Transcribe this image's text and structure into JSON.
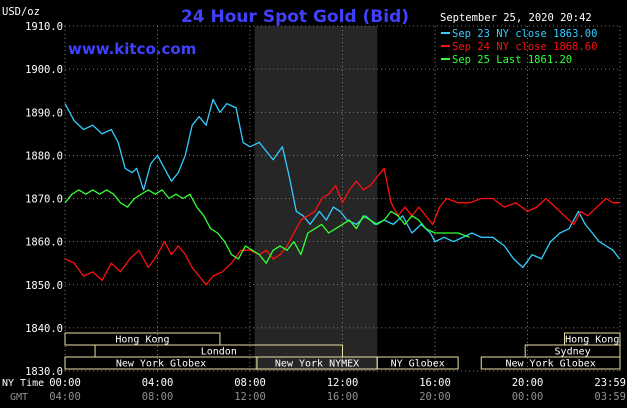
{
  "header": {
    "title": "24 Hour Spot Gold (Bid)",
    "website": "www.kitco.com",
    "y_unit": "USD/oz",
    "timestamp": "September 25, 2020 20:42"
  },
  "colors": {
    "background": "#000000",
    "title": "#4040ff",
    "website": "#4040ff",
    "grid": "#9a9a9a",
    "axis_text": "#ffffff",
    "night_shade": "#262626",
    "session_bar": "#e8e0a0",
    "gmt_text": "#909090"
  },
  "chart_data": {
    "type": "line",
    "title": "24 Hour Spot Gold (Bid)",
    "ylabel": "USD/oz",
    "ylim": [
      1830,
      1910
    ],
    "yticks": [
      "1830.0",
      "1840.0",
      "1850.0",
      "1860.0",
      "1870.0",
      "1880.0",
      "1890.0",
      "1900.0",
      "1910.0"
    ],
    "x_labels_ny": [
      "00:00",
      "04:00",
      "08:00",
      "12:00",
      "16:00",
      "20:00",
      "23:59"
    ],
    "x_labels_gmt": [
      "04:00",
      "08:00",
      "12:00",
      "16:00",
      "20:00",
      "00:00",
      "03:59"
    ],
    "x_row_label_ny": "NY Time",
    "x_row_label_gmt": "GMT",
    "shaded_hours": [
      8.2,
      13.5
    ],
    "grid": true,
    "legend_position": "top-right",
    "series": [
      {
        "name": "Sep 23 NY close 1863.00",
        "color": "#33ccff",
        "points": [
          [
            0,
            1892
          ],
          [
            0.4,
            1888
          ],
          [
            0.8,
            1886
          ],
          [
            1.2,
            1887
          ],
          [
            1.6,
            1885
          ],
          [
            2.0,
            1886
          ],
          [
            2.3,
            1883
          ],
          [
            2.6,
            1877
          ],
          [
            2.9,
            1876
          ],
          [
            3.1,
            1877
          ],
          [
            3.4,
            1872
          ],
          [
            3.7,
            1878
          ],
          [
            4.0,
            1880
          ],
          [
            4.3,
            1877
          ],
          [
            4.6,
            1874
          ],
          [
            4.9,
            1876
          ],
          [
            5.2,
            1880
          ],
          [
            5.5,
            1887
          ],
          [
            5.8,
            1889
          ],
          [
            6.1,
            1887
          ],
          [
            6.4,
            1893
          ],
          [
            6.7,
            1890
          ],
          [
            7.0,
            1892
          ],
          [
            7.4,
            1891
          ],
          [
            7.7,
            1883
          ],
          [
            8.0,
            1882
          ],
          [
            8.4,
            1883
          ],
          [
            8.7,
            1881
          ],
          [
            9.0,
            1879
          ],
          [
            9.4,
            1882
          ],
          [
            9.7,
            1875
          ],
          [
            10.0,
            1867
          ],
          [
            10.3,
            1866
          ],
          [
            10.6,
            1864
          ],
          [
            11.0,
            1867
          ],
          [
            11.3,
            1865
          ],
          [
            11.6,
            1868
          ],
          [
            11.9,
            1867
          ],
          [
            12.2,
            1865
          ],
          [
            12.6,
            1864
          ],
          [
            13.0,
            1866
          ],
          [
            13.4,
            1864
          ],
          [
            13.8,
            1865
          ],
          [
            14.2,
            1864
          ],
          [
            14.6,
            1866
          ],
          [
            15.0,
            1862
          ],
          [
            15.4,
            1864
          ],
          [
            15.8,
            1862
          ],
          [
            16.0,
            1860
          ],
          [
            16.4,
            1861
          ],
          [
            16.8,
            1860
          ],
          [
            17.2,
            1861
          ],
          [
            17.6,
            1862
          ],
          [
            18.0,
            1861
          ],
          [
            18.5,
            1861
          ],
          [
            19.0,
            1859
          ],
          [
            19.4,
            1856
          ],
          [
            19.8,
            1854
          ],
          [
            20.2,
            1857
          ],
          [
            20.6,
            1856
          ],
          [
            21.0,
            1860
          ],
          [
            21.4,
            1862
          ],
          [
            21.8,
            1863
          ],
          [
            22.2,
            1867
          ],
          [
            22.5,
            1864
          ],
          [
            22.8,
            1862
          ],
          [
            23.1,
            1860
          ],
          [
            23.4,
            1859
          ],
          [
            23.7,
            1858
          ],
          [
            23.98,
            1856
          ]
        ]
      },
      {
        "name": "Sep 24 NY close 1868.60",
        "color": "#ff1010",
        "points": [
          [
            0,
            1856
          ],
          [
            0.4,
            1855
          ],
          [
            0.8,
            1852
          ],
          [
            1.2,
            1853
          ],
          [
            1.6,
            1851
          ],
          [
            2.0,
            1855
          ],
          [
            2.4,
            1853
          ],
          [
            2.8,
            1856
          ],
          [
            3.2,
            1858
          ],
          [
            3.6,
            1854
          ],
          [
            4.0,
            1857
          ],
          [
            4.3,
            1860
          ],
          [
            4.6,
            1857
          ],
          [
            4.9,
            1859
          ],
          [
            5.2,
            1857
          ],
          [
            5.5,
            1854
          ],
          [
            5.8,
            1852
          ],
          [
            6.1,
            1850
          ],
          [
            6.4,
            1852
          ],
          [
            6.8,
            1853
          ],
          [
            7.2,
            1855
          ],
          [
            7.6,
            1858
          ],
          [
            8.0,
            1858
          ],
          [
            8.4,
            1857
          ],
          [
            8.7,
            1858
          ],
          [
            9.0,
            1856
          ],
          [
            9.3,
            1857
          ],
          [
            9.6,
            1859
          ],
          [
            9.9,
            1862
          ],
          [
            10.2,
            1865
          ],
          [
            10.5,
            1866
          ],
          [
            10.8,
            1867
          ],
          [
            11.1,
            1870
          ],
          [
            11.4,
            1871
          ],
          [
            11.7,
            1873
          ],
          [
            12.0,
            1869
          ],
          [
            12.3,
            1872
          ],
          [
            12.6,
            1874
          ],
          [
            12.9,
            1872
          ],
          [
            13.2,
            1873
          ],
          [
            13.5,
            1875
          ],
          [
            13.8,
            1877
          ],
          [
            14.1,
            1869
          ],
          [
            14.4,
            1866
          ],
          [
            14.7,
            1868
          ],
          [
            15.0,
            1866
          ],
          [
            15.3,
            1868
          ],
          [
            15.6,
            1866
          ],
          [
            15.9,
            1864
          ],
          [
            16.2,
            1868
          ],
          [
            16.5,
            1870
          ],
          [
            17.0,
            1869
          ],
          [
            17.5,
            1869
          ],
          [
            18.0,
            1870
          ],
          [
            18.5,
            1870
          ],
          [
            19.0,
            1868
          ],
          [
            19.5,
            1869
          ],
          [
            20.0,
            1867
          ],
          [
            20.4,
            1868
          ],
          [
            20.8,
            1870
          ],
          [
            21.2,
            1868
          ],
          [
            21.6,
            1866
          ],
          [
            22.0,
            1864
          ],
          [
            22.3,
            1867
          ],
          [
            22.6,
            1866
          ],
          [
            23.0,
            1868
          ],
          [
            23.4,
            1870
          ],
          [
            23.7,
            1869
          ],
          [
            23.98,
            1869
          ]
        ]
      },
      {
        "name": "Sep 25 Last 1861.20",
        "color": "#33ff33",
        "points": [
          [
            0,
            1869
          ],
          [
            0.3,
            1871
          ],
          [
            0.6,
            1872
          ],
          [
            0.9,
            1871
          ],
          [
            1.2,
            1872
          ],
          [
            1.5,
            1871
          ],
          [
            1.8,
            1872
          ],
          [
            2.1,
            1871
          ],
          [
            2.4,
            1869
          ],
          [
            2.7,
            1868
          ],
          [
            3.0,
            1870
          ],
          [
            3.3,
            1871
          ],
          [
            3.6,
            1872
          ],
          [
            3.9,
            1871
          ],
          [
            4.2,
            1872
          ],
          [
            4.5,
            1870
          ],
          [
            4.8,
            1871
          ],
          [
            5.1,
            1870
          ],
          [
            5.4,
            1871
          ],
          [
            5.7,
            1868
          ],
          [
            6.0,
            1866
          ],
          [
            6.3,
            1863
          ],
          [
            6.6,
            1862
          ],
          [
            6.9,
            1860
          ],
          [
            7.2,
            1857
          ],
          [
            7.5,
            1856
          ],
          [
            7.8,
            1859
          ],
          [
            8.1,
            1858
          ],
          [
            8.4,
            1857
          ],
          [
            8.7,
            1855
          ],
          [
            9.0,
            1858
          ],
          [
            9.3,
            1859
          ],
          [
            9.6,
            1858
          ],
          [
            9.9,
            1860
          ],
          [
            10.2,
            1857
          ],
          [
            10.5,
            1862
          ],
          [
            10.8,
            1863
          ],
          [
            11.1,
            1864
          ],
          [
            11.4,
            1862
          ],
          [
            11.7,
            1863
          ],
          [
            12.0,
            1864
          ],
          [
            12.3,
            1865
          ],
          [
            12.6,
            1863
          ],
          [
            12.9,
            1866
          ],
          [
            13.2,
            1865
          ],
          [
            13.5,
            1864
          ],
          [
            13.8,
            1865
          ],
          [
            14.1,
            1867
          ],
          [
            14.4,
            1866
          ],
          [
            14.7,
            1864
          ],
          [
            15.0,
            1866
          ],
          [
            15.3,
            1865
          ],
          [
            15.6,
            1863
          ],
          [
            16.0,
            1862
          ],
          [
            16.5,
            1862
          ],
          [
            17.0,
            1862
          ],
          [
            17.5,
            1861
          ]
        ]
      }
    ]
  },
  "sessions": [
    {
      "label": "Hong Kong",
      "start": -0.5,
      "end": 6.7,
      "row": 0
    },
    {
      "label": "Hong Kong",
      "start": 21.6,
      "end": 25,
      "row": 0
    },
    {
      "label": "London",
      "start": 1.3,
      "end": 12.0,
      "row": 1
    },
    {
      "label": "Sydney",
      "start": 19.9,
      "end": 25,
      "row": 1
    },
    {
      "label": "New York Globex",
      "start": -0.5,
      "end": 8.3,
      "row": 2
    },
    {
      "label": "New York NYMEX",
      "start": 8.3,
      "end": 13.5,
      "row": 2
    },
    {
      "label": "NY Globex",
      "start": 13.5,
      "end": 17.0,
      "row": 2
    },
    {
      "label": "New York Globex",
      "start": 18.0,
      "end": 25,
      "row": 2
    }
  ]
}
